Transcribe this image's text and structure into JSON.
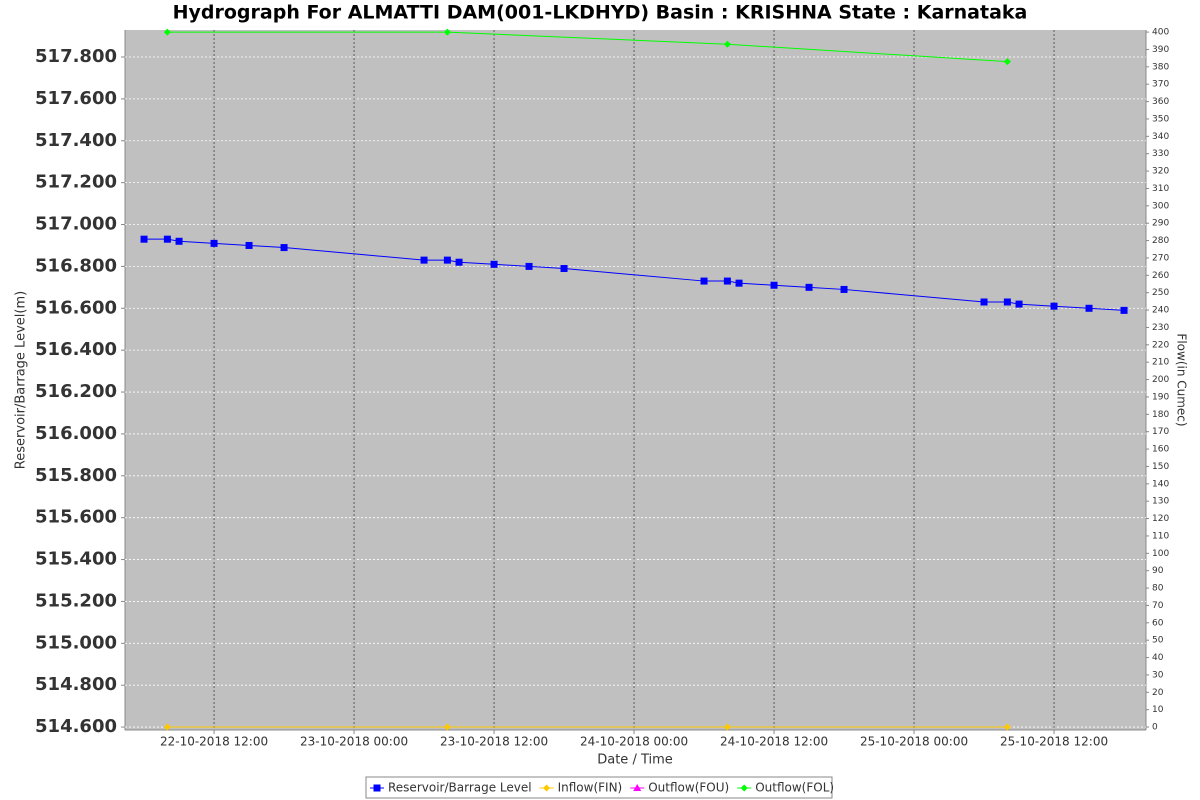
{
  "chart_data": {
    "type": "line",
    "title": "Hydrograph For ALMATTI DAM(001-LKDHYD) Basin : KRISHNA State : Karnataka",
    "x_label": "Date / Time",
    "y_label": "Reservoir/Barrage Level(m)",
    "y2_label": "Flow(in Cumec)",
    "xlim": [
      "22-10-2018 04:22",
      "25-10-2018 19:53"
    ],
    "xticks": [
      "22-10-2018 12:00",
      "23-10-2018 00:00",
      "23-10-2018 12:00",
      "24-10-2018 00:00",
      "24-10-2018 12:00",
      "25-10-2018 00:00",
      "25-10-2018 12:00"
    ],
    "ylim": [
      514.586,
      517.929
    ],
    "yticks": [
      {
        "value": 514.6,
        "label": "514.600"
      },
      {
        "value": 514.8,
        "label": "514.800"
      },
      {
        "value": 515.0,
        "label": "515.000"
      },
      {
        "value": 515.2,
        "label": "515.200"
      },
      {
        "value": 515.4,
        "label": "515.400"
      },
      {
        "value": 515.6,
        "label": "515.600"
      },
      {
        "value": 515.8,
        "label": "515.800"
      },
      {
        "value": 516.0,
        "label": "516.000"
      },
      {
        "value": 516.2,
        "label": "516.200"
      },
      {
        "value": 516.4,
        "label": "516.400"
      },
      {
        "value": 516.6,
        "label": "516.600"
      },
      {
        "value": 516.8,
        "label": "516.800"
      },
      {
        "value": 517.0,
        "label": "517.000"
      },
      {
        "value": 517.2,
        "label": "517.200"
      },
      {
        "value": 517.4,
        "label": "517.400"
      },
      {
        "value": 517.6,
        "label": "517.600"
      },
      {
        "value": 517.8,
        "label": "517.800"
      }
    ],
    "y2lim": [
      -1.7,
      401.2
    ],
    "y2ticks": [
      0,
      10,
      20,
      30,
      40,
      50,
      60,
      70,
      80,
      90,
      100,
      110,
      120,
      130,
      140,
      150,
      160,
      170,
      180,
      190,
      200,
      210,
      220,
      230,
      240,
      250,
      260,
      270,
      280,
      290,
      300,
      310,
      320,
      330,
      340,
      350,
      360,
      370,
      380,
      390,
      400
    ],
    "grid": true,
    "legend": "bottom",
    "series": [
      {
        "name": "Reservoir/Barrage Level",
        "color": "#0000ff",
        "marker": "square",
        "x": [
          "22-10-2018 06:00",
          "22-10-2018 08:00",
          "22-10-2018 09:00",
          "22-10-2018 12:00",
          "22-10-2018 15:00",
          "22-10-2018 18:00",
          "23-10-2018 06:00",
          "23-10-2018 08:00",
          "23-10-2018 09:00",
          "23-10-2018 12:00",
          "23-10-2018 15:00",
          "23-10-2018 18:00",
          "24-10-2018 06:00",
          "24-10-2018 08:00",
          "24-10-2018 09:00",
          "24-10-2018 12:00",
          "24-10-2018 15:00",
          "24-10-2018 18:00",
          "25-10-2018 06:00",
          "25-10-2018 08:00",
          "25-10-2018 09:00",
          "25-10-2018 12:00",
          "25-10-2018 15:00",
          "25-10-2018 18:00"
        ],
        "values": [
          516.93,
          516.93,
          516.92,
          516.91,
          516.9,
          516.89,
          516.83,
          516.83,
          516.82,
          516.81,
          516.8,
          516.79,
          516.73,
          516.73,
          516.72,
          516.71,
          516.7,
          516.69,
          516.63,
          516.63,
          516.62,
          516.61,
          516.6,
          516.59
        ]
      },
      {
        "name": "Inflow(FIN)",
        "color": "#ffc800",
        "marker": "diamond",
        "axis": "y2",
        "x": [
          "22-10-2018 08:00",
          "23-10-2018 08:00",
          "24-10-2018 08:00",
          "25-10-2018 08:00"
        ],
        "values": [
          0,
          0,
          0,
          0
        ]
      },
      {
        "name": "Outflow(FOU)",
        "color": "#ff00ff",
        "marker": "triangle",
        "axis": "y2",
        "x": [
          "22-10-2018 08:00",
          "23-10-2018 08:00",
          "24-10-2018 08:00",
          "25-10-2018 08:00"
        ],
        "values": [
          null,
          null,
          null,
          null
        ]
      },
      {
        "name": "Outflow(FOL)",
        "color": "#00ff00",
        "marker": "diamond",
        "axis": "y2",
        "x": [
          "22-10-2018 08:00",
          "23-10-2018 08:00",
          "24-10-2018 08:00",
          "25-10-2018 08:00"
        ],
        "values": [
          400,
          400,
          393,
          383
        ]
      }
    ]
  }
}
